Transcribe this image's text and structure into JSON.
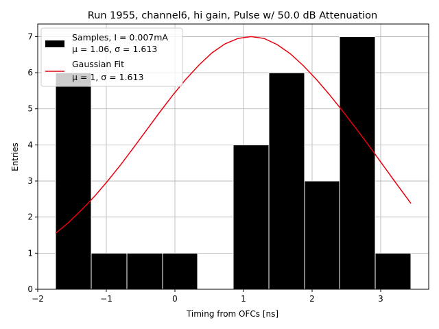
{
  "chart_data": {
    "type": "bar",
    "title": "Run 1955, channel6, hi gain, Pulse w/ 50.0 dB Attenuation",
    "xlabel": "Timing from OFCs [ns]",
    "ylabel": "Entries",
    "xlim": [
      -2.0,
      3.7
    ],
    "ylim": [
      0,
      7.35
    ],
    "xticks": [
      -2,
      -1,
      0,
      1,
      2,
      3
    ],
    "xtick_labels": [
      "−2",
      "−1",
      "0",
      "1",
      "2",
      "3"
    ],
    "yticks": [
      0,
      1,
      2,
      3,
      4,
      5,
      6,
      7
    ],
    "ytick_labels": [
      "0",
      "1",
      "2",
      "3",
      "4",
      "5",
      "6",
      "7"
    ],
    "grid": true,
    "legend_position": "top-left",
    "histogram": {
      "name": "Samples, I = 0.007mA",
      "stats_label": "μ = 1.06, σ = 1.613",
      "color": "#000000",
      "bin_edges": [
        -1.74,
        -1.22,
        -0.7,
        -0.18,
        0.33,
        0.85,
        1.37,
        1.89,
        2.4,
        2.92,
        3.44
      ],
      "counts": [
        6,
        1,
        1,
        1,
        0,
        4,
        6,
        3,
        7,
        1
      ]
    },
    "fit": {
      "name": "Gaussian Fit",
      "stats_label": "μ = 1, σ = 1.613",
      "color": "#e8000b",
      "type": "line",
      "x": [
        -1.74,
        -1.55,
        -1.36,
        -1.17,
        -0.98,
        -0.79,
        -0.6,
        -0.41,
        -0.22,
        -0.03,
        0.16,
        0.35,
        0.54,
        0.73,
        0.92,
        1.11,
        1.3,
        1.49,
        1.68,
        1.87,
        2.06,
        2.25,
        2.44,
        2.63,
        2.82,
        3.01,
        3.2,
        3.44
      ],
      "y": [
        1.55,
        1.85,
        2.2,
        2.58,
        3.0,
        3.45,
        3.93,
        4.42,
        4.91,
        5.38,
        5.82,
        6.21,
        6.55,
        6.8,
        6.95,
        7.0,
        6.95,
        6.78,
        6.53,
        6.2,
        5.82,
        5.4,
        4.95,
        4.48,
        4.0,
        3.5,
        3.0,
        2.38
      ]
    }
  }
}
